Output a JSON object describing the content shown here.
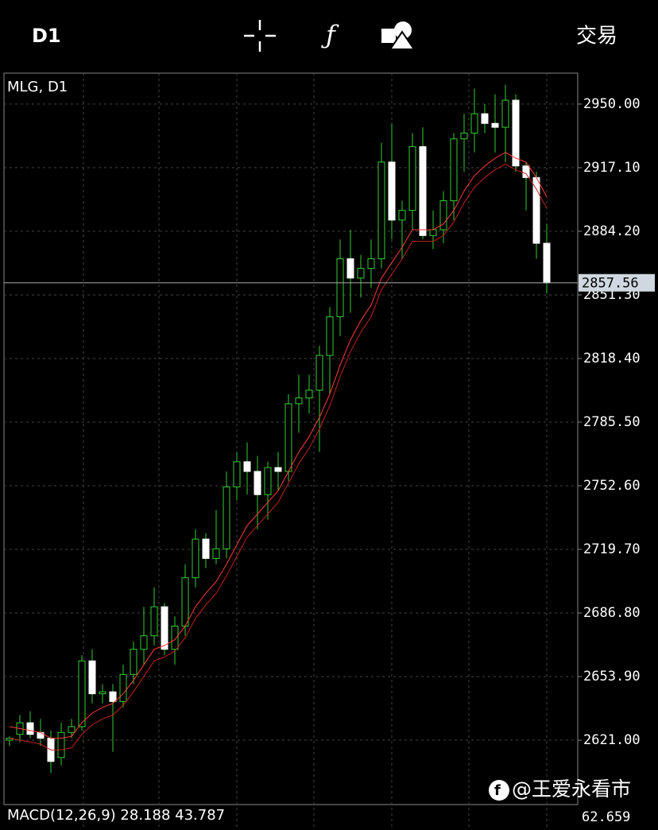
{
  "toolbar": {
    "timeframe": "D1",
    "trade": "交易"
  },
  "chart_data": {
    "type": "candlestick",
    "title": "MLG, D1",
    "open": [
      2621,
      2624,
      2630,
      2625,
      2622,
      2612,
      2625,
      2628,
      2662,
      2645,
      2646,
      2641,
      2655,
      2668,
      2675,
      2690,
      2668,
      2680,
      2705,
      2725,
      2715,
      2720,
      2752,
      2765,
      2760,
      2748,
      2762,
      2760,
      2795,
      2798,
      2802,
      2820,
      2840,
      2870,
      2860,
      2865,
      2870,
      2920,
      2890,
      2895,
      2928,
      2882,
      2885,
      2900,
      2932,
      2935,
      2945,
      2940,
      2938,
      2952,
      2918,
      2912,
      2878
    ],
    "high": [
      2623,
      2634,
      2636,
      2632,
      2626,
      2630,
      2632,
      2665,
      2668,
      2650,
      2650,
      2660,
      2672,
      2690,
      2700,
      2692,
      2685,
      2712,
      2730,
      2728,
      2740,
      2760,
      2770,
      2775,
      2768,
      2765,
      2770,
      2800,
      2810,
      2810,
      2825,
      2845,
      2880,
      2885,
      2872,
      2880,
      2930,
      2940,
      2900,
      2935,
      2938,
      2895,
      2905,
      2935,
      2945,
      2958,
      2950,
      2955,
      2960,
      2955,
      2920,
      2915,
      2888
    ],
    "low": [
      2618,
      2620,
      2622,
      2618,
      2604,
      2608,
      2622,
      2626,
      2640,
      2640,
      2615,
      2638,
      2650,
      2660,
      2670,
      2665,
      2660,
      2675,
      2700,
      2710,
      2712,
      2715,
      2745,
      2748,
      2730,
      2735,
      2750,
      2755,
      2780,
      2790,
      2770,
      2800,
      2830,
      2842,
      2850,
      2855,
      2865,
      2880,
      2870,
      2885,
      2880,
      2875,
      2878,
      2890,
      2915,
      2925,
      2935,
      2925,
      2920,
      2915,
      2895,
      2870,
      2852
    ],
    "close": [
      2622,
      2630,
      2624,
      2622,
      2610,
      2625,
      2628,
      2662,
      2645,
      2646,
      2641,
      2655,
      2668,
      2675,
      2690,
      2668,
      2680,
      2705,
      2725,
      2715,
      2720,
      2752,
      2765,
      2760,
      2748,
      2762,
      2760,
      2795,
      2798,
      2802,
      2820,
      2840,
      2870,
      2860,
      2865,
      2870,
      2920,
      2890,
      2895,
      2928,
      2882,
      2885,
      2900,
      2932,
      2935,
      2945,
      2940,
      2938,
      2952,
      2918,
      2912,
      2878,
      2857.56
    ],
    "up_color": "#33cc33",
    "down_color": "#ffffff",
    "series": [
      {
        "color": "#ff3b3b",
        "values": [
          2628,
          2627,
          2626,
          2625,
          2622,
          2622,
          2623,
          2630,
          2635,
          2638,
          2640,
          2645,
          2652,
          2660,
          2668,
          2670,
          2673,
          2680,
          2690,
          2697,
          2703,
          2712,
          2722,
          2732,
          2738,
          2744,
          2750,
          2760,
          2770,
          2778,
          2788,
          2800,
          2815,
          2828,
          2838,
          2846,
          2860,
          2868,
          2876,
          2885,
          2885,
          2885,
          2888,
          2895,
          2905,
          2913,
          2918,
          2922,
          2925,
          2922,
          2920,
          2912,
          2902
        ]
      },
      {
        "color": "#c42020",
        "values": [
          2622,
          2621,
          2620,
          2619,
          2616,
          2616,
          2617,
          2624,
          2629,
          2632,
          2634,
          2639,
          2646,
          2654,
          2662,
          2664,
          2667,
          2674,
          2684,
          2691,
          2697,
          2706,
          2716,
          2726,
          2732,
          2738,
          2744,
          2754,
          2764,
          2772,
          2782,
          2794,
          2809,
          2822,
          2832,
          2840,
          2854,
          2862,
          2870,
          2879,
          2879,
          2879,
          2882,
          2889,
          2899,
          2907,
          2912,
          2916,
          2919,
          2916,
          2914,
          2906,
          2896
        ]
      }
    ],
    "current_price": 2857.56,
    "ylim": [
      2587.7,
      2966.0
    ],
    "yticks": [
      {
        "value": 2950,
        "label": "2950.00"
      },
      {
        "value": 2917.1,
        "label": "2917.10"
      },
      {
        "value": 2884.2,
        "label": "2884.20"
      },
      {
        "value": 2851.3,
        "label": "2851.30"
      },
      {
        "value": 2818.4,
        "label": "2818.40"
      },
      {
        "value": 2785.5,
        "label": "2785.50"
      },
      {
        "value": 2752.6,
        "label": "2752.60"
      },
      {
        "value": 2719.7,
        "label": "2719.70"
      },
      {
        "value": 2686.8,
        "label": "2686.80"
      },
      {
        "value": 2653.9,
        "label": "2653.90"
      },
      {
        "value": 2621,
        "label": "2621.00"
      }
    ],
    "grid": true
  },
  "macd": {
    "label": "MACD(12,26,9) 28.188 43.787",
    "axis_label": "62.659"
  },
  "watermark": "@王爱永看市"
}
